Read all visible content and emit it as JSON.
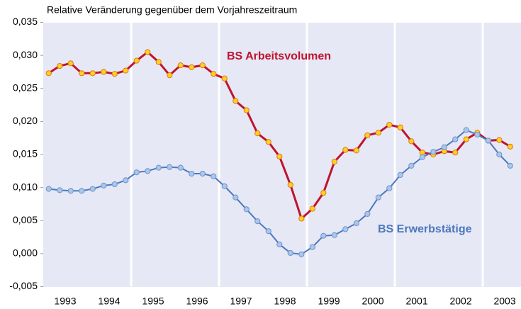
{
  "chart_data": {
    "type": "line",
    "title": "Relative Veränderung gegenüber dem Vorjahreszeitraum",
    "x": [
      1993.125,
      1993.375,
      1993.625,
      1993.875,
      1994.125,
      1994.375,
      1994.625,
      1994.875,
      1995.125,
      1995.375,
      1995.625,
      1995.875,
      1996.125,
      1996.375,
      1996.625,
      1996.875,
      1997.125,
      1997.375,
      1997.625,
      1997.875,
      1998.125,
      1998.375,
      1998.625,
      1998.875,
      1999.125,
      1999.375,
      1999.625,
      1999.875,
      2000.125,
      2000.375,
      2000.625,
      2000.875,
      2001.125,
      2001.375,
      2001.625,
      2001.875,
      2002.125,
      2002.375,
      2002.625,
      2002.875,
      2003.125,
      2003.375,
      2003.625
    ],
    "series": [
      {
        "name": "BS Arbeitsvolumen",
        "color": "#c0132e",
        "marker_color": "#ffd21f",
        "values": [
          0.0273,
          0.0284,
          0.0288,
          0.0273,
          0.0273,
          0.0275,
          0.0272,
          0.0277,
          0.0292,
          0.0305,
          0.029,
          0.027,
          0.0285,
          0.0282,
          0.0285,
          0.0272,
          0.0265,
          0.0231,
          0.0217,
          0.0182,
          0.0169,
          0.0147,
          0.0104,
          0.0053,
          0.0068,
          0.0092,
          0.0139,
          0.0157,
          0.0156,
          0.0179,
          0.0183,
          0.0195,
          0.0191,
          0.017,
          0.0153,
          0.015,
          0.0155,
          0.0153,
          0.0173,
          0.0183,
          0.0171,
          0.0172,
          0.0162
        ]
      },
      {
        "name": "BS Erwerbstätige",
        "color": "#4d78bd",
        "marker_color": "#a9c6ec",
        "values": [
          0.0098,
          0.0096,
          0.0095,
          0.0095,
          0.0098,
          0.0103,
          0.0105,
          0.0111,
          0.0123,
          0.0125,
          0.013,
          0.0131,
          0.013,
          0.0121,
          0.0121,
          0.0117,
          0.0102,
          0.0085,
          0.0067,
          0.0049,
          0.0034,
          0.0014,
          0.0001,
          -0.0001,
          0.001,
          0.0027,
          0.0028,
          0.0037,
          0.0046,
          0.006,
          0.0085,
          0.0099,
          0.0119,
          0.0133,
          0.0146,
          0.0154,
          0.0161,
          0.0173,
          0.0187,
          0.018,
          0.0171,
          0.015,
          0.0133
        ]
      }
    ],
    "xlim": [
      1993,
      2003.87
    ],
    "xticks": [
      {
        "value": 1993.5,
        "label": "1993"
      },
      {
        "value": 1994.5,
        "label": "1994"
      },
      {
        "value": 1995.5,
        "label": "1995"
      },
      {
        "value": 1996.5,
        "label": "1996"
      },
      {
        "value": 1997.5,
        "label": "1997"
      },
      {
        "value": 1998.5,
        "label": "1998"
      },
      {
        "value": 1999.5,
        "label": "1999"
      },
      {
        "value": 2000.5,
        "label": "2000"
      },
      {
        "value": 2001.5,
        "label": "2001"
      },
      {
        "value": 2002.5,
        "label": "2002"
      },
      {
        "value": 2003.5,
        "label": "2003"
      }
    ],
    "xgrid": [
      1995,
      1997,
      1999,
      2001,
      2003
    ],
    "ylim": [
      -0.005,
      0.035
    ],
    "yticks": [
      {
        "value": 0.035,
        "label": "0,035"
      },
      {
        "value": 0.03,
        "label": "0,030"
      },
      {
        "value": 0.025,
        "label": "0,025"
      },
      {
        "value": 0.02,
        "label": "0,020"
      },
      {
        "value": 0.015,
        "label": "0,015"
      },
      {
        "value": 0.01,
        "label": "0,010"
      },
      {
        "value": 0.005,
        "label": "0,005"
      },
      {
        "value": 0,
        "label": "0,000"
      },
      {
        "value": -0.005,
        "label": "-0,005"
      }
    ],
    "background": "#e6e8f5"
  }
}
